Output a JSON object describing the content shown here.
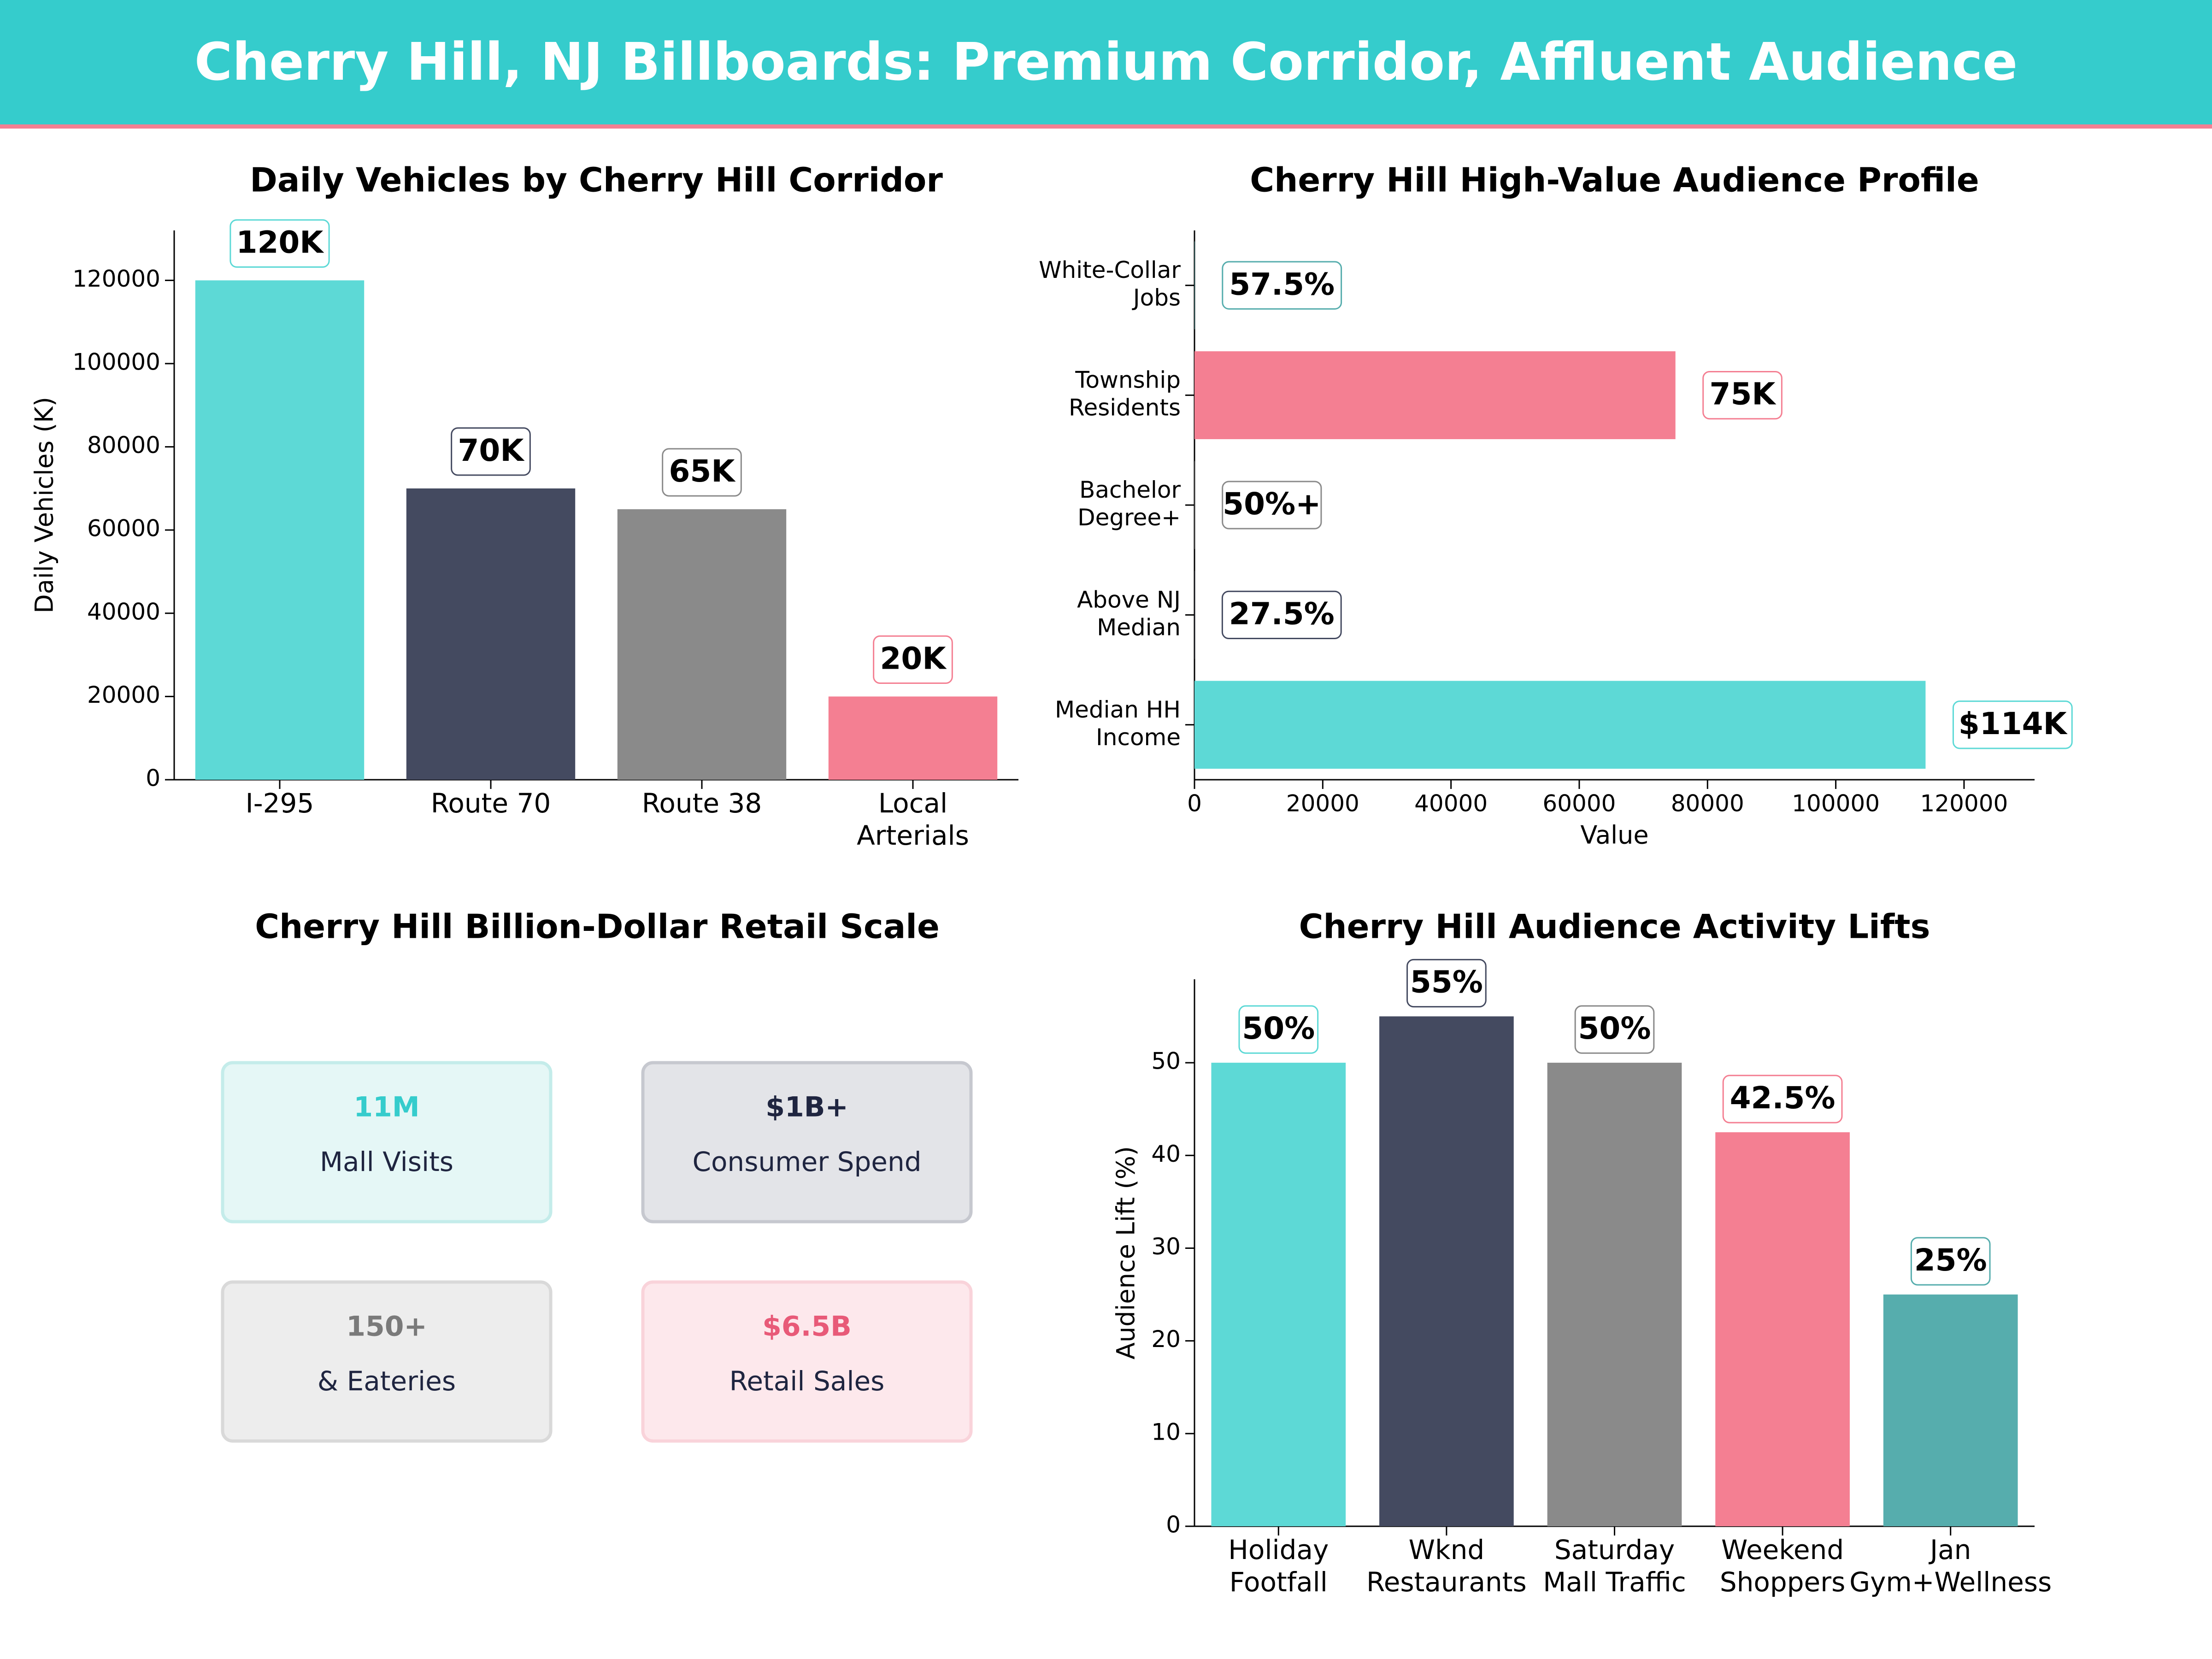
{
  "header": {
    "title": "Cherry Hill, NJ Billboards: Premium Corridor, Affluent Audience"
  },
  "colors": {
    "teal": "#5dd9d6",
    "navy": "#444a60",
    "gray": "#8a8a8a",
    "pink": "#f47f92",
    "dark_teal": "#56adad",
    "banner": "#35cccc"
  },
  "chart_data": [
    {
      "type": "bar",
      "title": "Daily Vehicles by Cherry Hill Corridor",
      "ylabel": "Daily Vehicles (K)",
      "xlabel": "",
      "ylim": [
        0,
        132000
      ],
      "yticks": [
        0,
        20000,
        40000,
        60000,
        80000,
        100000,
        120000
      ],
      "categories": [
        "I-295",
        "Route 70",
        "Route 38",
        "Local\nArterials"
      ],
      "values": [
        120000,
        70000,
        65000,
        20000
      ],
      "value_labels": [
        "120K",
        "70K",
        "65K",
        "20K"
      ],
      "bar_colors": [
        "#5dd9d6",
        "#444a60",
        "#8a8a8a",
        "#f47f92"
      ],
      "grid": false
    },
    {
      "type": "bar",
      "orientation": "horizontal",
      "title": "Cherry Hill High-Value Audience Profile",
      "xlabel": "Value",
      "ylabel": "",
      "xlim": [
        0,
        131000
      ],
      "xticks": [
        0,
        20000,
        40000,
        60000,
        80000,
        100000,
        120000
      ],
      "categories": [
        "White-Collar\nJobs",
        "Township\nResidents",
        "Bachelor\nDegree+",
        "Above NJ\nMedian",
        "Median HH\nIncome"
      ],
      "values": [
        57.5,
        75000,
        50,
        27.5,
        114000
      ],
      "value_labels": [
        "57.5%",
        "75K",
        "50%+",
        "27.5%",
        "$114K"
      ],
      "bar_colors": [
        "#56adad",
        "#f47f92",
        "#8a8a8a",
        "#444a60",
        "#5dd9d6"
      ],
      "grid": false
    },
    {
      "type": "table",
      "title": "Cherry Hill Billion-Dollar Retail Scale",
      "cards": [
        {
          "value": "11M",
          "label": "Mall Visits",
          "accent": "#35cccc",
          "fill": "#e5f7f6",
          "border": "#c4ecea"
        },
        {
          "value": "$1B+",
          "label": "Consumer Spend",
          "accent": "#1f2540",
          "fill": "#e3e4e8",
          "border": "#c6c8cf"
        },
        {
          "value": "150+",
          "label": "& Eateries",
          "accent": "#7a7a7a",
          "fill": "#ededed",
          "border": "#d9d9d9"
        },
        {
          "value": "$6.5B",
          "label": "Retail Sales",
          "accent": "#e85a78",
          "fill": "#fde8ec",
          "border": "#f9d3da"
        }
      ]
    },
    {
      "type": "bar",
      "title": "Cherry Hill Audience Activity Lifts",
      "ylabel": "Audience Lift (%)",
      "xlabel": "",
      "ylim": [
        0,
        59
      ],
      "yticks": [
        0,
        10,
        20,
        30,
        40,
        50
      ],
      "categories": [
        "Holiday\nFootfall",
        "Wknd\nRestaurants",
        "Saturday\nMall Traffic",
        "Weekend\nShoppers",
        "Jan\nGym+Wellness"
      ],
      "values": [
        50,
        55,
        50,
        42.5,
        25
      ],
      "value_labels": [
        "50%",
        "55%",
        "50%",
        "42.5%",
        "25%"
      ],
      "bar_colors": [
        "#5dd9d6",
        "#444a60",
        "#8a8a8a",
        "#f47f92",
        "#56adad"
      ],
      "grid": false
    }
  ]
}
